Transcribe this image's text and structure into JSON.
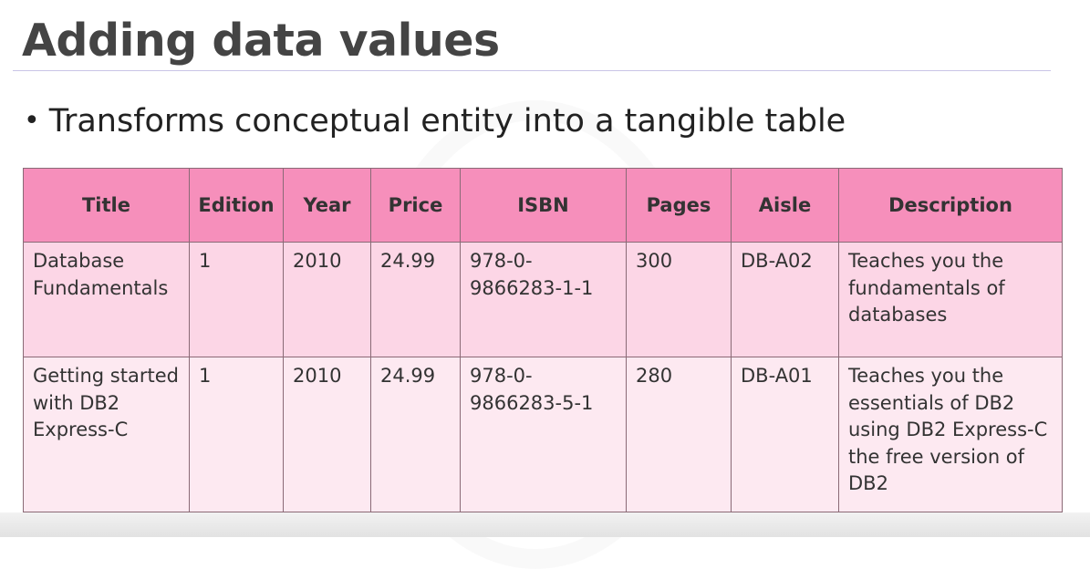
{
  "slide": {
    "title": "Adding data values",
    "bullet": "Transforms conceptual entity into a tangible table"
  },
  "table": {
    "columns": [
      "Title",
      "Edition",
      "Year",
      "Price",
      "ISBN",
      "Pages",
      "Aisle",
      "Description"
    ],
    "rows": [
      [
        "Database Fundamentals",
        "1",
        "2010",
        "24.99",
        "978-0-9866283-1-1",
        "300",
        "DB-A02",
        "Teaches you the fundamentals of databases"
      ],
      [
        "Getting started with DB2 Express-C",
        "1",
        "2010",
        "24.99",
        "978-0-9866283-5-1",
        "280",
        "DB-A01",
        "Teaches you the essentials of DB2 using DB2 Express-C the free version of DB2"
      ]
    ]
  },
  "colors": {
    "header_background": "#f68fbb",
    "row_1_background": "#fcd6e6",
    "row_2_background": "#fde9f1",
    "title_text": "#444444"
  }
}
